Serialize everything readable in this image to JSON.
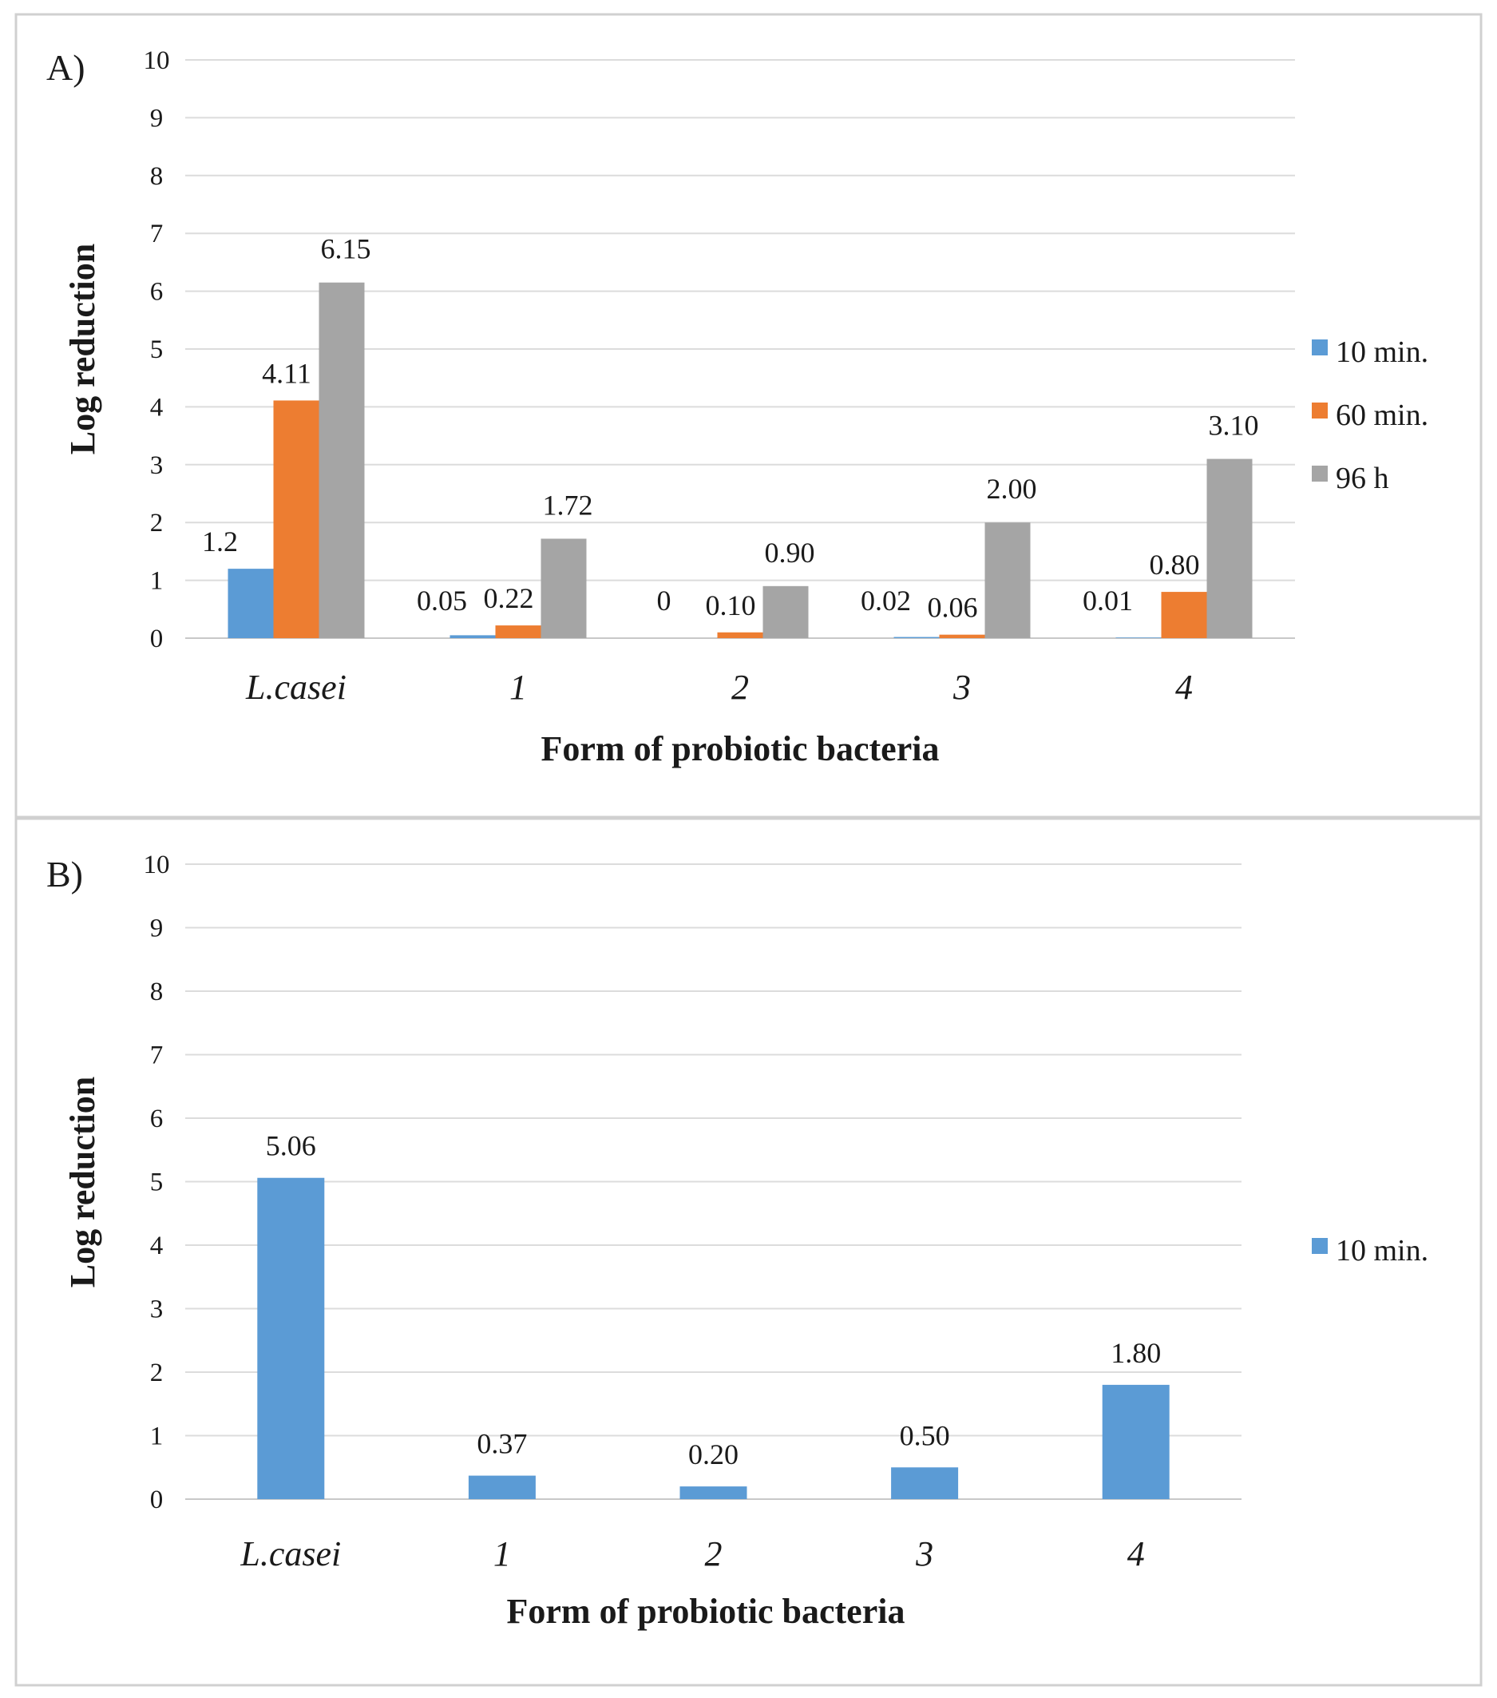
{
  "chart_data": [
    {
      "panel_label": "A)",
      "type": "bar",
      "categories": [
        "L.casei",
        "1",
        "2",
        "3",
        "4"
      ],
      "series": [
        {
          "name": "10 min.",
          "color": "#5B9BD5",
          "values": [
            1.2,
            0.05,
            0,
            0.02,
            0.01
          ],
          "labels": [
            "1.2",
            "0.05",
            "0",
            "0.02",
            "0.01"
          ]
        },
        {
          "name": "60 min.",
          "color": "#ED7D31",
          "values": [
            4.11,
            0.22,
            0.1,
            0.06,
            0.8
          ],
          "labels": [
            "4.11",
            "0.22",
            "0.10",
            "0.06",
            "0.80"
          ]
        },
        {
          "name": "96 h",
          "color": "#A5A5A5",
          "values": [
            6.15,
            1.72,
            0.9,
            2.0,
            3.1
          ],
          "labels": [
            "6.15",
            "1.72",
            "0.90",
            "2.00",
            "3.10"
          ]
        }
      ],
      "xlabel": "Form of probiotic bacteria",
      "ylabel": "Log reduction",
      "ylim": [
        0,
        10
      ],
      "yticks": [
        "0",
        "1",
        "2",
        "3",
        "4",
        "5",
        "6",
        "7",
        "8",
        "9",
        "10"
      ],
      "grid": true,
      "legend_position": "right"
    },
    {
      "panel_label": "B)",
      "type": "bar",
      "categories": [
        "L.casei",
        "1",
        "2",
        "3",
        "4"
      ],
      "series": [
        {
          "name": "10 min.",
          "color": "#5B9BD5",
          "values": [
            5.06,
            0.37,
            0.2,
            0.5,
            1.8
          ],
          "labels": [
            "5.06",
            "0.37",
            "0.20",
            "0.50",
            "1.80"
          ]
        }
      ],
      "xlabel": "Form of probiotic bacteria",
      "ylabel": "Log reduction",
      "ylim": [
        0,
        10
      ],
      "yticks": [
        "0",
        "1",
        "2",
        "3",
        "4",
        "5",
        "6",
        "7",
        "8",
        "9",
        "10"
      ],
      "grid": true,
      "legend_position": "right"
    }
  ]
}
